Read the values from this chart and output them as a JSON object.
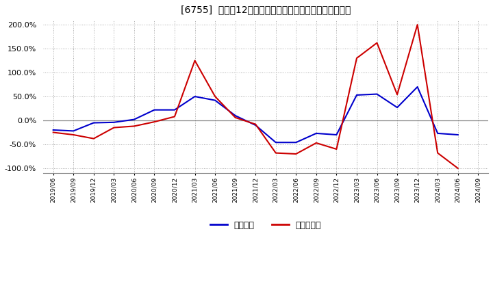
{
  "title": "[6755]  利益だ12か月移動合計の対前年同期増減率の推移",
  "ylim": [
    -1.1,
    2.1
  ],
  "yticks": [
    -1.0,
    -0.5,
    0.0,
    0.5,
    1.0,
    1.5,
    2.0
  ],
  "background_color": "#ffffff",
  "plot_bg_color": "#ffffff",
  "grid_color": "#aaaaaa",
  "zero_line_color": "#888888",
  "legend_label_op": "経常利益",
  "legend_label_np": "当期純利益",
  "color_op": "#0000cc",
  "color_np": "#cc0000",
  "dates": [
    "2019/06",
    "2019/09",
    "2019/12",
    "2020/03",
    "2020/06",
    "2020/09",
    "2020/12",
    "2021/03",
    "2021/06",
    "2021/09",
    "2021/12",
    "2022/03",
    "2022/06",
    "2022/09",
    "2022/12",
    "2023/03",
    "2023/06",
    "2023/09",
    "2023/12",
    "2024/03",
    "2024/06",
    "2024/09"
  ],
  "operating_profit": [
    -0.2,
    -0.22,
    -0.05,
    -0.04,
    0.02,
    0.22,
    0.22,
    0.5,
    0.42,
    0.1,
    -0.1,
    -0.46,
    -0.46,
    -0.27,
    -0.3,
    0.53,
    0.55,
    0.27,
    0.7,
    -0.27,
    -0.3,
    null
  ],
  "net_profit": [
    -0.25,
    -0.3,
    -0.38,
    -0.15,
    -0.12,
    -0.03,
    0.08,
    1.25,
    0.5,
    0.06,
    -0.08,
    -0.68,
    -0.7,
    -0.47,
    -0.6,
    1.3,
    1.62,
    0.54,
    2.0,
    -0.68,
    -1.0,
    null
  ]
}
